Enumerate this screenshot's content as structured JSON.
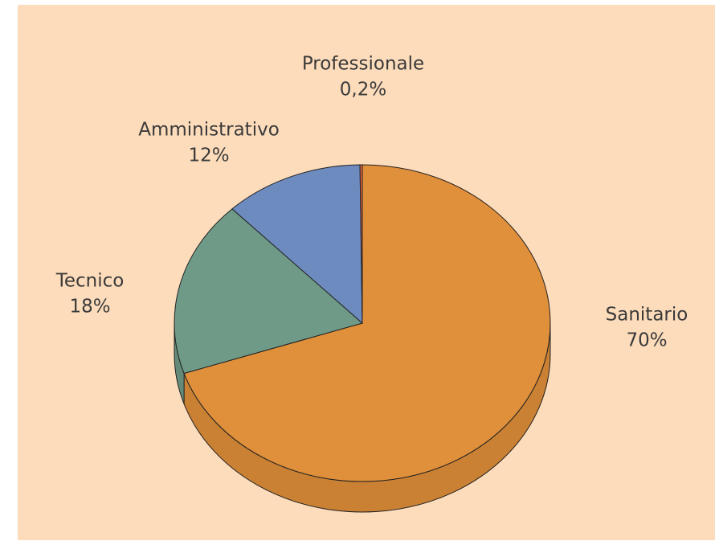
{
  "chart_data": {
    "type": "pie",
    "categories": [
      "Sanitario",
      "Tecnico",
      "Amministrativo",
      "Professionale"
    ],
    "values": [
      70,
      18,
      12,
      0.2
    ],
    "value_labels": [
      "70%",
      "18%",
      "12%",
      "0,2%"
    ],
    "colors": [
      "#e08f3a",
      "#6f9a88",
      "#6e8bbf",
      "#e0623e"
    ]
  }
}
